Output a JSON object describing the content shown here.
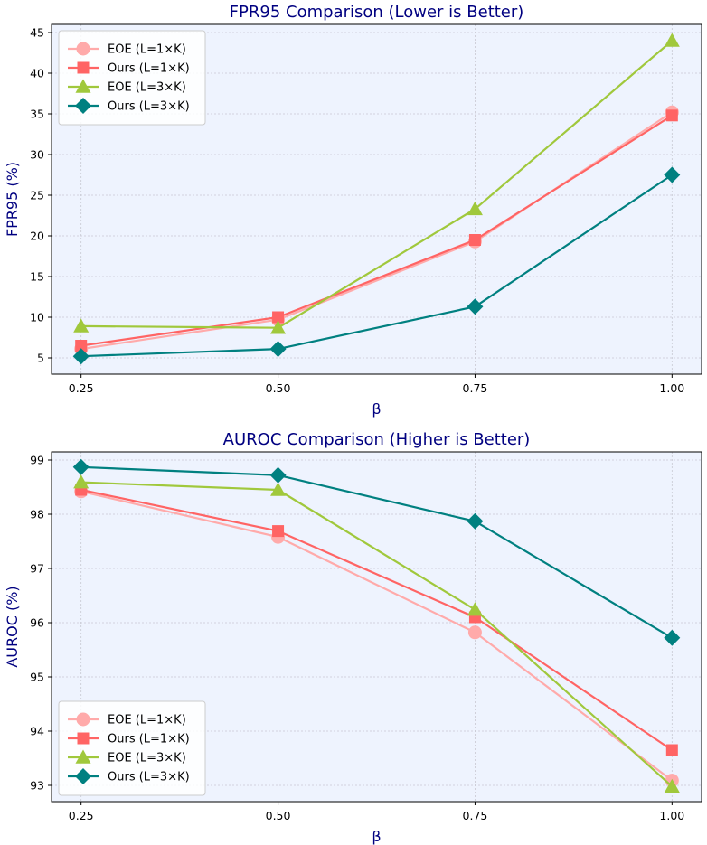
{
  "chart_data": [
    {
      "type": "line",
      "title": "FPR95 Comparison (Lower is Better)",
      "xlabel": "β",
      "ylabel": "FPR95 (%)",
      "x": [
        0.25,
        0.5,
        0.75,
        1.0
      ],
      "x_tick_labels": [
        "0.25",
        "0.50",
        "0.75",
        "1.00"
      ],
      "ylim": [
        3.0,
        46.0
      ],
      "y_ticks": [
        5,
        10,
        15,
        20,
        25,
        30,
        35,
        40,
        45
      ],
      "grid": true,
      "legend_position": "top-left",
      "series": [
        {
          "name": "EOE (L=1×K)",
          "values": [
            6.1,
            9.7,
            19.3,
            35.2
          ],
          "color": "#ffaaaa",
          "marker": "circle"
        },
        {
          "name": "Ours (L=1×K)",
          "values": [
            6.5,
            10.0,
            19.5,
            34.8
          ],
          "color": "#ff6464",
          "marker": "square"
        },
        {
          "name": "EOE (L=3×K)",
          "values": [
            8.9,
            8.7,
            23.3,
            44.0
          ],
          "color": "#a0c83c",
          "marker": "triangle"
        },
        {
          "name": "Ours (L=3×K)",
          "values": [
            5.2,
            6.1,
            11.3,
            27.5
          ],
          "color": "#008080",
          "marker": "diamond"
        }
      ]
    },
    {
      "type": "line",
      "title": "AUROC Comparison (Higher is Better)",
      "xlabel": "β",
      "ylabel": "AUROC (%)",
      "x": [
        0.25,
        0.5,
        0.75,
        1.0
      ],
      "x_tick_labels": [
        "0.25",
        "0.50",
        "0.75",
        "1.00"
      ],
      "ylim": [
        92.7,
        99.15
      ],
      "y_ticks": [
        93,
        94,
        95,
        96,
        97,
        98,
        99
      ],
      "grid": true,
      "legend_position": "bottom-left",
      "series": [
        {
          "name": "EOE (L=1×K)",
          "values": [
            98.42,
            97.58,
            95.82,
            93.09
          ],
          "color": "#ffaaaa",
          "marker": "circle"
        },
        {
          "name": "Ours (L=1×K)",
          "values": [
            98.45,
            97.69,
            96.1,
            93.65
          ],
          "color": "#ff6464",
          "marker": "square"
        },
        {
          "name": "EOE (L=3×K)",
          "values": [
            98.59,
            98.45,
            96.24,
            92.98
          ],
          "color": "#a0c83c",
          "marker": "triangle"
        },
        {
          "name": "Ours (L=3×K)",
          "values": [
            98.87,
            98.72,
            97.87,
            95.72
          ],
          "color": "#008080",
          "marker": "diamond"
        }
      ]
    }
  ]
}
